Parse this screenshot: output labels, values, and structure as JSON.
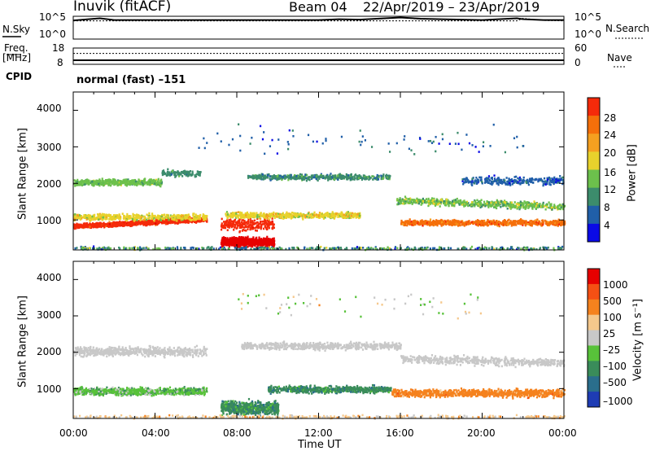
{
  "header": {
    "site": "Inuvik (fitACF)",
    "beam": "Beam 04",
    "dates": "22/Apr/2019 – 23/Apr/2019",
    "cpid_label": "CPID",
    "cpid_value": "normal (fast) –151"
  },
  "chart_data": [
    {
      "type": "line",
      "name": "noise-panel",
      "left_label": "N.Sky",
      "right_label": "N.Search",
      "left_ticks": [
        "10^5",
        "10^0"
      ],
      "right_ticks": [
        "10^5",
        "10^0"
      ],
      "scale": "log",
      "x": [
        0,
        1.3,
        2,
        4,
        6,
        8,
        10,
        12,
        13,
        14,
        16,
        17,
        18,
        20,
        21.7,
        22,
        23,
        24
      ],
      "values": [
        4.5,
        5.0,
        4.6,
        4.6,
        4.6,
        4.6,
        4.6,
        4.6,
        4.8,
        4.7,
        5.2,
        4.9,
        4.8,
        4.6,
        5.0,
        4.8,
        4.6,
        4.6
      ],
      "values_dotted": [
        4.4,
        4.4,
        4.4,
        4.4,
        4.4,
        4.4,
        4.4,
        4.4,
        4.4,
        4.4,
        4.4,
        4.4,
        4.4,
        4.4,
        4.4,
        5.0,
        4.5,
        4.4
      ]
    },
    {
      "type": "line",
      "name": "freq-panel",
      "left_label": "Freq.",
      "left_unit": "[MHz]",
      "right_label": "Nave",
      "left_ticks": [
        "18",
        "8"
      ],
      "right_ticks": [
        "60",
        "0"
      ],
      "x": [
        0,
        24
      ],
      "values": [
        10.5,
        10.5
      ],
      "values_dotted": [
        40,
        40
      ]
    },
    {
      "type": "heatmap",
      "name": "power-panel",
      "ylabel": "Slant Range [km]",
      "ylim": [
        180,
        4500
      ],
      "yticks": [
        "1000",
        "2000",
        "3000",
        "4000"
      ],
      "colorbar_label": "Power [dB]",
      "colorbar_ticks": [
        "4",
        "8",
        "12",
        "16",
        "20",
        "24",
        "28"
      ],
      "colors": [
        "#0a0ae6",
        "#205fa8",
        "#3c8c6c",
        "#6cc04c",
        "#e8d22c",
        "#f5a020",
        "#f56f0a",
        "#f52a0a",
        "#e60000"
      ],
      "value_range": [
        0,
        30
      ]
    },
    {
      "type": "heatmap",
      "name": "velocity-panel",
      "ylabel": "Slant Range [km]",
      "ylim": [
        180,
        4500
      ],
      "yticks": [
        "1000",
        "2000",
        "3000",
        "4000"
      ],
      "xlabel": "Time UT",
      "xticks": [
        "00:00",
        "04:00",
        "08:00",
        "12:00",
        "16:00",
        "20:00",
        "00:00"
      ],
      "colorbar_label": "Velocity [m s⁻¹]",
      "colorbar_ticks": [
        "1000",
        "500",
        "100",
        "25",
        "–25",
        "–100",
        "–500",
        "–1000"
      ],
      "colors": [
        "#1e3cb4",
        "#2a6e8c",
        "#3a8c5a",
        "#58c23a",
        "#c8c8c8",
        "#f5c88c",
        "#f5821e",
        "#f55014",
        "#e60000"
      ]
    }
  ]
}
